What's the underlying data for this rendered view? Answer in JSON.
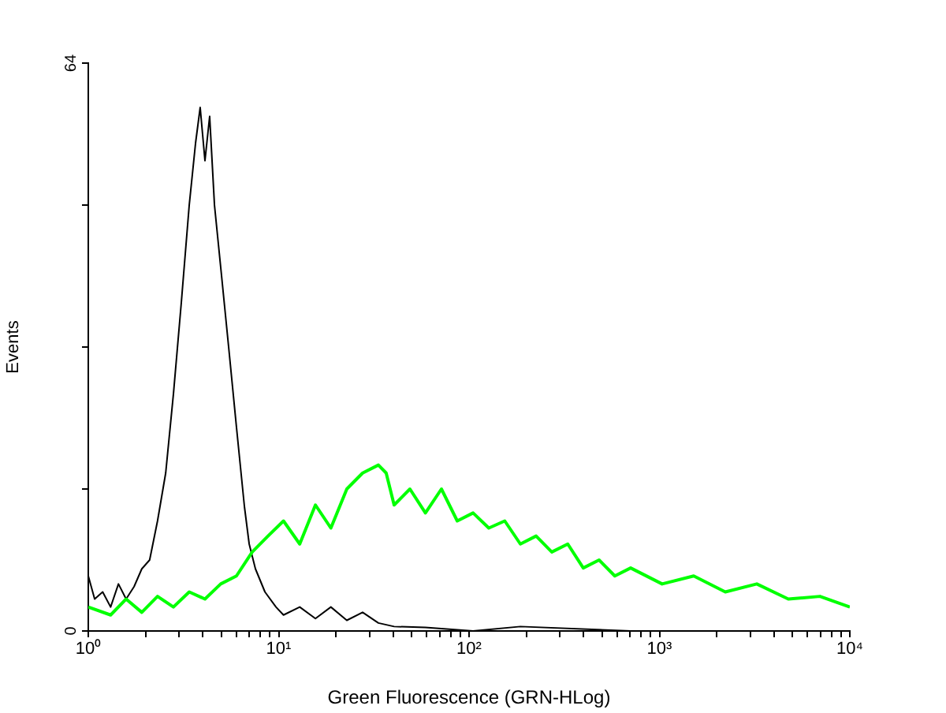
{
  "chart_data": {
    "type": "line",
    "xlabel": "Green Fluorescence (GRN-HLog)",
    "ylabel": "Events",
    "log": "x",
    "grid": false,
    "legend": false,
    "marker": "none",
    "line_style": "solid",
    "xlim": [
      1,
      10000
    ],
    "ylim": [
      0,
      64
    ],
    "xticks": [
      {
        "value": 1,
        "label": "10⁰"
      },
      {
        "value": 2,
        "label": null
      },
      {
        "value": 3,
        "label": null
      },
      {
        "value": 4,
        "label": null
      },
      {
        "value": 5,
        "label": null
      },
      {
        "value": 6,
        "label": null
      },
      {
        "value": 7,
        "label": null
      },
      {
        "value": 8,
        "label": null
      },
      {
        "value": 9,
        "label": null
      },
      {
        "value": 10,
        "label": "10¹"
      },
      {
        "value": 20,
        "label": null
      },
      {
        "value": 30,
        "label": null
      },
      {
        "value": 40,
        "label": null
      },
      {
        "value": 50,
        "label": null
      },
      {
        "value": 60,
        "label": null
      },
      {
        "value": 70,
        "label": null
      },
      {
        "value": 80,
        "label": null
      },
      {
        "value": 90,
        "label": null
      },
      {
        "value": 100,
        "label": "10²"
      },
      {
        "value": 200,
        "label": null
      },
      {
        "value": 300,
        "label": null
      },
      {
        "value": 400,
        "label": null
      },
      {
        "value": 500,
        "label": null
      },
      {
        "value": 600,
        "label": null
      },
      {
        "value": 700,
        "label": null
      },
      {
        "value": 800,
        "label": null
      },
      {
        "value": 900,
        "label": null
      },
      {
        "value": 1000,
        "label": "10³"
      },
      {
        "value": 2000,
        "label": null
      },
      {
        "value": 3000,
        "label": null
      },
      {
        "value": 4000,
        "label": null
      },
      {
        "value": 5000,
        "label": null
      },
      {
        "value": 6000,
        "label": null
      },
      {
        "value": 7000,
        "label": null
      },
      {
        "value": 8000,
        "label": null
      },
      {
        "value": 9000,
        "label": null
      },
      {
        "value": 10000,
        "label": "10⁴"
      }
    ],
    "yticks": [
      0,
      {
        "value": 16,
        "label": null
      },
      {
        "value": 32,
        "label": null
      },
      {
        "value": 48,
        "label": null
      },
      64
    ],
    "series": [
      {
        "color": "#00ff00",
        "x": [
          1,
          1.31,
          1.58,
          1.91,
          2.31,
          2.8,
          3.39,
          4.1,
          4.96,
          6,
          7.26,
          8.79,
          10.6,
          12.9,
          15.6,
          18.8,
          22.8,
          27.6,
          33.4,
          36.7,
          40.4,
          48.9,
          59,
          71.6,
          86.7,
          105,
          127,
          154,
          186,
          225,
          272,
          330,
          398,
          482,
          583,
          706,
          1033,
          1514,
          2218,
          3246,
          4753,
          6966,
          10000
        ],
        "values": [
          2.7,
          1.8,
          3.6,
          2.1,
          3.9,
          2.7,
          4.4,
          3.6,
          5.3,
          6.2,
          8.9,
          10.7,
          12.4,
          9.8,
          14.2,
          11.6,
          16,
          17.8,
          18.7,
          17.8,
          14.2,
          16,
          13.3,
          16,
          12.4,
          13.3,
          11.6,
          12.4,
          9.8,
          10.7,
          8.9,
          9.8,
          7.1,
          8,
          6.2,
          7.1,
          5.3,
          6.2,
          4.4,
          5.3,
          3.6,
          3.9,
          2.7
        ]
      },
      {
        "color": "#000000",
        "x": [
          1,
          1.08,
          1.19,
          1.31,
          1.44,
          1.58,
          1.74,
          1.91,
          2.1,
          2.31,
          2.55,
          2.8,
          3.08,
          3.39,
          3.66,
          3.87,
          4.1,
          4.34,
          4.6,
          4.96,
          5.46,
          6,
          6.61,
          7,
          7.55,
          8.47,
          9.68,
          10.6,
          12.9,
          15.6,
          18.8,
          22.8,
          27.6,
          33.4,
          40.4,
          59,
          105,
          186,
          706
        ],
        "values": [
          6.2,
          3.6,
          4.4,
          2.7,
          5.3,
          3.6,
          5,
          7,
          8,
          12.4,
          17.8,
          26.7,
          37,
          48,
          55,
          59,
          53,
          58,
          48,
          41,
          32,
          23,
          14,
          9.8,
          7,
          4.4,
          2.7,
          1.8,
          2.7,
          1.4,
          2.7,
          1.2,
          2.1,
          0.9,
          0.5,
          0.4,
          0,
          0.5,
          0
        ]
      }
    ]
  }
}
